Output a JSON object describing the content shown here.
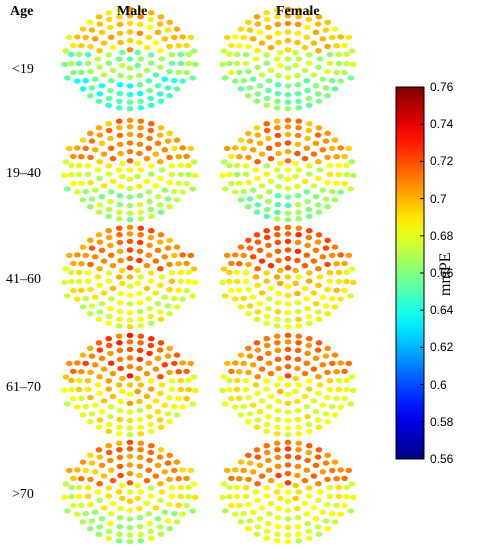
{
  "chart_data": {
    "type": "heatmap",
    "title": "",
    "headers": {
      "age": "Age",
      "male": "Male",
      "female": "Female"
    },
    "age_groups": [
      "<19",
      "19–40",
      "41–60",
      "61–70",
      ">70"
    ],
    "colorbar": {
      "label": "mmPE",
      "min": 0.56,
      "max": 0.76,
      "ticks": [
        "0.56",
        "0.58",
        "0.6",
        "0.62",
        "0.64",
        "0.66",
        "0.68",
        "0.7",
        "0.72",
        "0.74",
        "0.76"
      ],
      "colormap": "jet"
    },
    "panels": [
      {
        "age": "<19",
        "sex": "Male",
        "frontal": 0.7,
        "central": 0.665,
        "lateral": 0.655,
        "occipital": 0.645,
        "spread": 0.012
      },
      {
        "age": "<19",
        "sex": "Female",
        "frontal": 0.7,
        "central": 0.675,
        "lateral": 0.665,
        "occipital": 0.66,
        "spread": 0.01
      },
      {
        "age": "19–40",
        "sex": "Male",
        "frontal": 0.71,
        "central": 0.68,
        "lateral": 0.675,
        "occipital": 0.665,
        "spread": 0.012
      },
      {
        "age": "19–40",
        "sex": "Female",
        "frontal": 0.71,
        "central": 0.68,
        "lateral": 0.675,
        "occipital": 0.66,
        "spread": 0.012
      },
      {
        "age": "41–60",
        "sex": "Male",
        "frontal": 0.715,
        "central": 0.69,
        "lateral": 0.68,
        "occipital": 0.68,
        "spread": 0.012
      },
      {
        "age": "41–60",
        "sex": "Female",
        "frontal": 0.72,
        "central": 0.695,
        "lateral": 0.68,
        "occipital": 0.685,
        "spread": 0.01
      },
      {
        "age": "61–70",
        "sex": "Male",
        "frontal": 0.72,
        "central": 0.695,
        "lateral": 0.68,
        "occipital": 0.685,
        "spread": 0.012
      },
      {
        "age": "61–70",
        "sex": "Female",
        "frontal": 0.715,
        "central": 0.69,
        "lateral": 0.675,
        "occipital": 0.685,
        "spread": 0.01
      },
      {
        "age": ">70",
        "sex": "Male",
        "frontal": 0.71,
        "central": 0.685,
        "lateral": 0.675,
        "occipital": 0.67,
        "spread": 0.012
      },
      {
        "age": ">70",
        "sex": "Female",
        "frontal": 0.715,
        "central": 0.69,
        "lateral": 0.675,
        "occipital": 0.68,
        "spread": 0.01
      }
    ]
  }
}
